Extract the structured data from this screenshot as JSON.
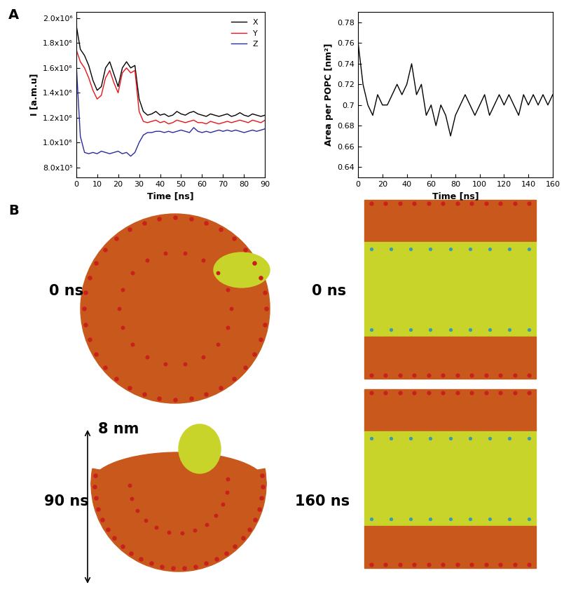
{
  "panel_a": {
    "label": "A"
  },
  "chart_data": [
    {
      "type": "line",
      "x_label": "Time [ns]",
      "y_label": "I [a.m.u]",
      "x": [
        0,
        2,
        4,
        6,
        8,
        10,
        12,
        14,
        16,
        18,
        20,
        22,
        24,
        26,
        28,
        30,
        32,
        34,
        36,
        38,
        40,
        42,
        44,
        46,
        48,
        50,
        52,
        54,
        56,
        58,
        60,
        62,
        64,
        66,
        68,
        70,
        72,
        74,
        76,
        78,
        80,
        82,
        84,
        86,
        88,
        90
      ],
      "series": [
        {
          "name": "X",
          "color": "#000000",
          "values": [
            1950000,
            1750000,
            1700000,
            1620000,
            1500000,
            1420000,
            1450000,
            1600000,
            1650000,
            1550000,
            1450000,
            1600000,
            1650000,
            1600000,
            1620000,
            1350000,
            1250000,
            1220000,
            1230000,
            1250000,
            1220000,
            1230000,
            1210000,
            1220000,
            1250000,
            1230000,
            1220000,
            1240000,
            1250000,
            1230000,
            1220000,
            1210000,
            1230000,
            1220000,
            1210000,
            1220000,
            1230000,
            1210000,
            1220000,
            1240000,
            1220000,
            1210000,
            1230000,
            1220000,
            1210000,
            1220000
          ]
        },
        {
          "name": "Y",
          "color": "#e8141a",
          "values": [
            1750000,
            1650000,
            1600000,
            1520000,
            1420000,
            1350000,
            1380000,
            1520000,
            1580000,
            1480000,
            1400000,
            1560000,
            1600000,
            1560000,
            1580000,
            1250000,
            1170000,
            1160000,
            1170000,
            1180000,
            1160000,
            1170000,
            1150000,
            1160000,
            1180000,
            1170000,
            1160000,
            1170000,
            1180000,
            1160000,
            1160000,
            1150000,
            1170000,
            1160000,
            1150000,
            1160000,
            1170000,
            1160000,
            1170000,
            1180000,
            1170000,
            1160000,
            1180000,
            1170000,
            1160000,
            1180000
          ]
        },
        {
          "name": "Z",
          "color": "#2b2ba0",
          "values": [
            1650000,
            1050000,
            920000,
            910000,
            920000,
            910000,
            930000,
            920000,
            910000,
            920000,
            930000,
            910000,
            920000,
            890000,
            920000,
            1000000,
            1060000,
            1080000,
            1080000,
            1090000,
            1090000,
            1080000,
            1090000,
            1080000,
            1090000,
            1100000,
            1090000,
            1080000,
            1120000,
            1090000,
            1080000,
            1090000,
            1080000,
            1090000,
            1100000,
            1090000,
            1100000,
            1090000,
            1100000,
            1090000,
            1080000,
            1090000,
            1100000,
            1090000,
            1100000,
            1110000
          ]
        }
      ],
      "xlim": [
        0,
        90
      ],
      "xticks": [
        0,
        10,
        20,
        30,
        40,
        50,
        60,
        70,
        80,
        90
      ],
      "ylim": [
        720000,
        2050000
      ],
      "yticks": [
        {
          "value": 800000,
          "label": "8.0x10⁵"
        },
        {
          "value": 1000000,
          "label": "1.0x10⁶"
        },
        {
          "value": 1200000,
          "label": "1.2x10⁶"
        },
        {
          "value": 1400000,
          "label": "1.4x10⁶"
        },
        {
          "value": 1600000,
          "label": "1.6x10⁶"
        },
        {
          "value": 1800000,
          "label": "1.8x10⁶"
        },
        {
          "value": 2000000,
          "label": "2.0x10⁶"
        }
      ],
      "legend": "upper right",
      "grid": false
    },
    {
      "type": "line",
      "x_label": "Time [ns]",
      "y_label": "Area per POPC [nm²]",
      "x": [
        0,
        4,
        8,
        12,
        16,
        20,
        24,
        28,
        32,
        36,
        40,
        44,
        48,
        52,
        56,
        60,
        64,
        68,
        72,
        76,
        80,
        84,
        88,
        92,
        96,
        100,
        104,
        108,
        112,
        116,
        120,
        124,
        128,
        132,
        136,
        140,
        144,
        148,
        152,
        156,
        160
      ],
      "series": [
        {
          "color": "#000000",
          "values": [
            0.76,
            0.72,
            0.7,
            0.69,
            0.71,
            0.7,
            0.7,
            0.71,
            0.72,
            0.71,
            0.72,
            0.74,
            0.71,
            0.72,
            0.69,
            0.7,
            0.68,
            0.7,
            0.69,
            0.67,
            0.69,
            0.7,
            0.71,
            0.7,
            0.69,
            0.7,
            0.71,
            0.69,
            0.7,
            0.71,
            0.7,
            0.71,
            0.7,
            0.69,
            0.71,
            0.7,
            0.71,
            0.7,
            0.71,
            0.7,
            0.71
          ]
        }
      ],
      "xlim": [
        0,
        160
      ],
      "xticks": [
        0,
        20,
        40,
        60,
        80,
        100,
        120,
        140,
        160
      ],
      "ylim": [
        0.63,
        0.79
      ],
      "yticks": [
        0.64,
        0.66,
        0.68,
        0.7,
        0.72,
        0.74,
        0.76,
        0.78
      ],
      "grid": false
    }
  ],
  "panel_b": {
    "label": "B",
    "scale_bar": "8 nm",
    "snapshots": [
      {
        "label": "0 ns"
      },
      {
        "label": "90 ns"
      },
      {
        "label": "0 ns"
      },
      {
        "label": "160 ns"
      }
    ]
  }
}
